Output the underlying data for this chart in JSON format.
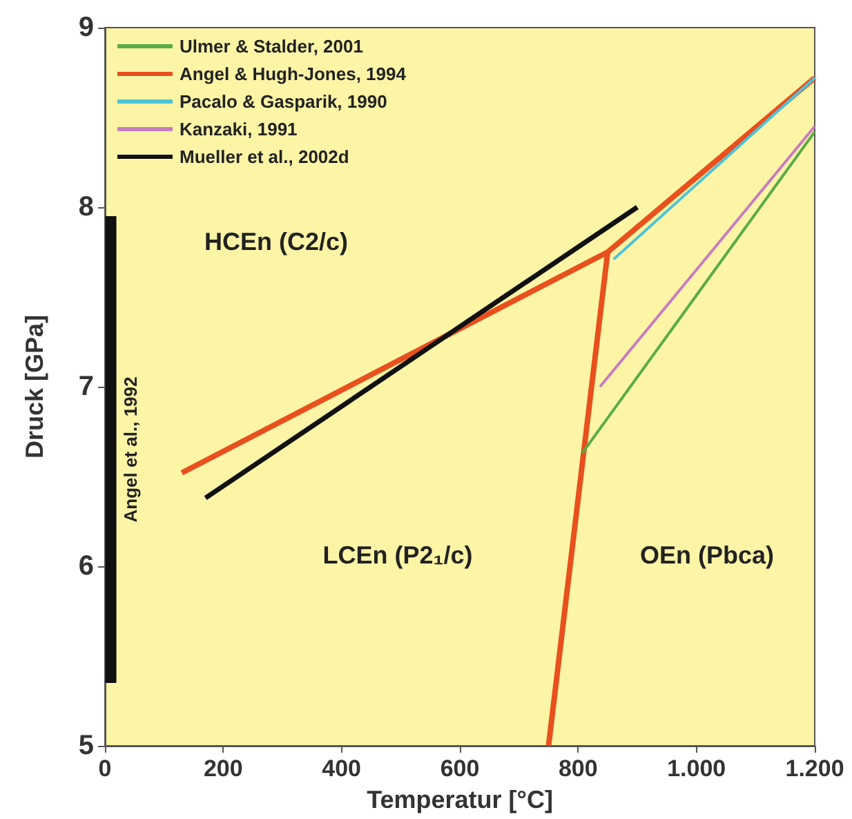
{
  "chart_data": {
    "type": "line",
    "xlabel": "Temperatur [°C]",
    "ylabel": "Druck [GPa]",
    "xlim": [
      0,
      1200
    ],
    "xticks": [
      0,
      200,
      400,
      600,
      800,
      {
        "value": 1000,
        "label": "1.000"
      },
      {
        "value": 1200,
        "label": "1.200"
      }
    ],
    "ylim": [
      5,
      9
    ],
    "yticks": [
      5,
      6,
      7,
      8,
      9
    ],
    "grid": false,
    "legend": "top left",
    "marker": "none",
    "line_style": "solid",
    "series": [
      {
        "name": "Ulmer & Stalder, 2001",
        "color": "#5aab46",
        "x": [
          807,
          1200
        ],
        "values": [
          6.63,
          8.42
        ]
      },
      {
        "name": "Angel & Hugh-Jones, 1994",
        "color": "#e8501e",
        "x": [
          130,
          850,
          1200,
          null,
          850,
          750
        ],
        "values": [
          6.52,
          7.75,
          8.72,
          null,
          7.75,
          5
        ]
      },
      {
        "name": "Pacalo & Gasparik, 1990",
        "color": "#4dc3d8",
        "x": [
          860,
          1200
        ],
        "values": [
          7.71,
          8.72
        ]
      },
      {
        "name": "Kanzaki, 1991",
        "color": "#c77dc0",
        "x": [
          837,
          1200
        ],
        "values": [
          7.0,
          8.45
        ]
      },
      {
        "name": "Mueller et al., 2002d",
        "color": "#111111",
        "x": [
          170,
          900
        ],
        "values": [
          6.38,
          8.0
        ]
      },
      {
        "name": "Angel et al., 1992",
        "type": "line",
        "color": "#111111",
        "x": [
          10,
          10
        ],
        "values": [
          5.35,
          7.95
        ]
      }
    ],
    "annotations": [
      "HCEn (C2/c)",
      "LCEn (P2₁/c)",
      "OEn (Pbca)"
    ]
  }
}
